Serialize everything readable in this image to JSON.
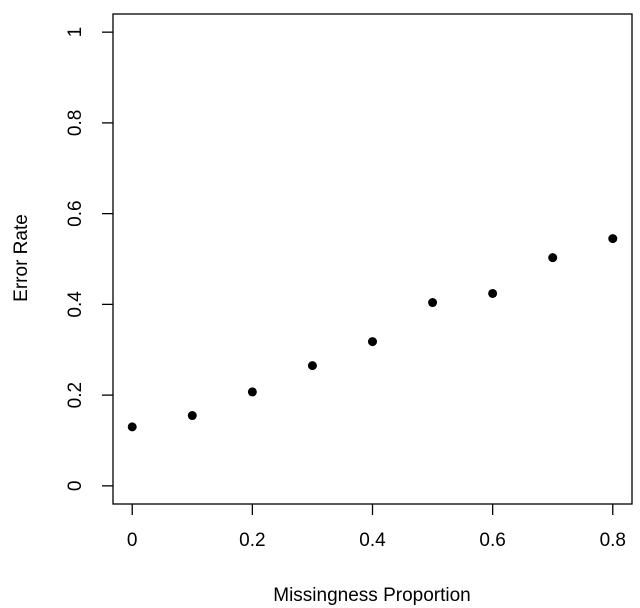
{
  "chart_data": {
    "type": "scatter",
    "x_label": "Missingness Proportion",
    "y_label": "Error Rate",
    "x": [
      0,
      0.1,
      0.2,
      0.3,
      0.4,
      0.5,
      0.6,
      0.7,
      0.8
    ],
    "y": [
      0.13,
      0.155,
      0.207,
      0.265,
      0.318,
      0.404,
      0.424,
      0.503,
      0.545
    ],
    "color": "#000000",
    "xlim": [
      -0.032,
      0.832
    ],
    "xticks": [
      0,
      0.2,
      0.4,
      0.6,
      0.8
    ],
    "ylim": [
      -0.04,
      1.04
    ],
    "yticks": [
      0,
      0.2,
      0.4,
      0.6,
      0.8,
      1
    ],
    "grid": false
  }
}
